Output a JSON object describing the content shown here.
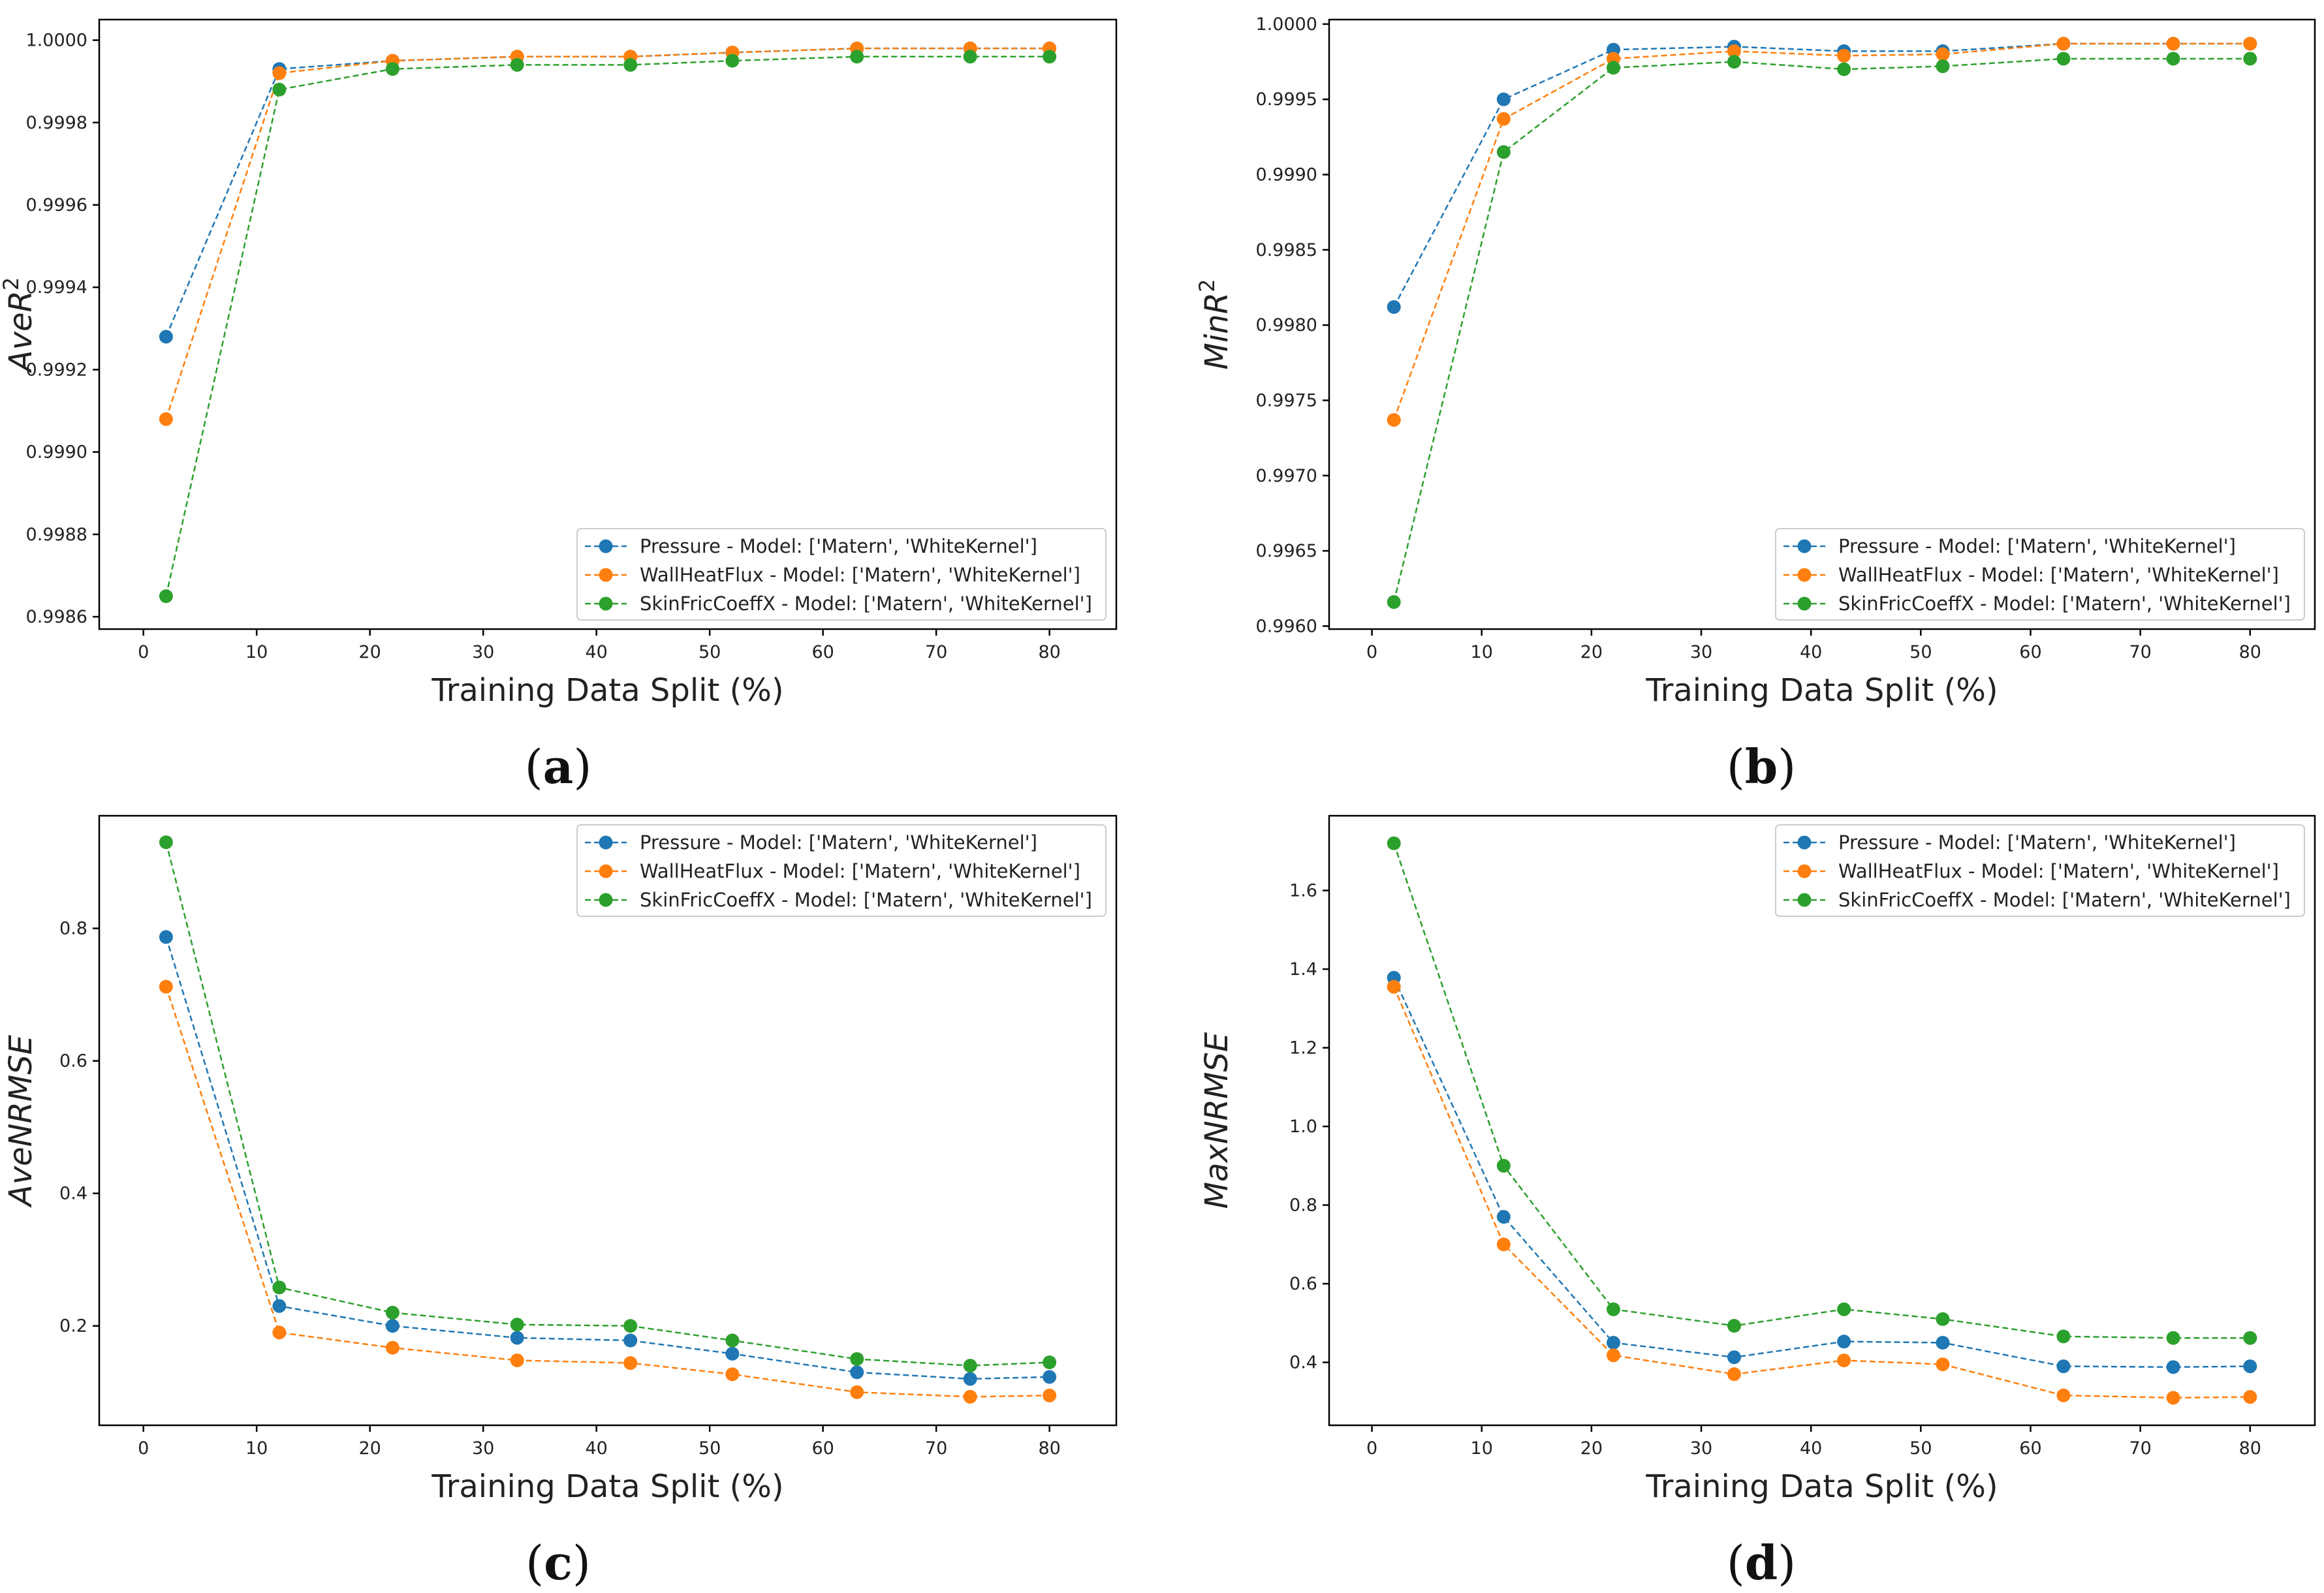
{
  "chart_data": [
    {
      "type": "line",
      "caption": "a",
      "xlabel": "Training Data Split (%)",
      "ylabel_base": "AveR",
      "ylabel_sup": "2",
      "x": [
        2,
        12,
        22,
        33,
        43,
        52,
        63,
        73,
        80
      ],
      "xlim": [
        -3.9,
        85.9
      ],
      "ylim": [
        0.99857,
        1.00005
      ],
      "xticks": [
        0,
        10,
        20,
        30,
        40,
        50,
        60,
        70,
        80
      ],
      "xtick_labels": [
        "0",
        "10",
        "20",
        "30",
        "40",
        "50",
        "60",
        "70",
        "80"
      ],
      "yticks": [
        0.9986,
        0.9988,
        0.999,
        0.9992,
        0.9994,
        0.9996,
        0.9998,
        1.0
      ],
      "ytick_labels": [
        "0.9986",
        "0.9988",
        "0.9990",
        "0.9992",
        "0.9994",
        "0.9996",
        "0.9998",
        "1.0000"
      ],
      "legend_position": "lower-right",
      "series": [
        {
          "name": "Pressure - Model: ['Matern', 'WhiteKernel']",
          "color": "#1f77b4",
          "values": [
            0.99928,
            0.99993,
            0.99995,
            0.99996,
            0.99996,
            0.99997,
            0.99998,
            0.99998,
            0.99998
          ]
        },
        {
          "name": "WallHeatFlux - Model: ['Matern', 'WhiteKernel']",
          "color": "#ff7f0e",
          "values": [
            0.99908,
            0.99992,
            0.99995,
            0.99996,
            0.99996,
            0.99997,
            0.99998,
            0.99998,
            0.99998
          ]
        },
        {
          "name": "SkinFricCoeffX - Model: ['Matern', 'WhiteKernel']",
          "color": "#2ca02c",
          "values": [
            0.99865,
            0.99988,
            0.99993,
            0.99994,
            0.99994,
            0.99995,
            0.99996,
            0.99996,
            0.99996
          ]
        }
      ]
    },
    {
      "type": "line",
      "caption": "b",
      "xlabel": "Training Data Split (%)",
      "ylabel_base": "MinR",
      "ylabel_sup": "2",
      "x": [
        2,
        12,
        22,
        33,
        43,
        52,
        63,
        73,
        80
      ],
      "xlim": [
        -3.9,
        85.9
      ],
      "ylim": [
        0.99598,
        1.00003
      ],
      "xticks": [
        0,
        10,
        20,
        30,
        40,
        50,
        60,
        70,
        80
      ],
      "xtick_labels": [
        "0",
        "10",
        "20",
        "30",
        "40",
        "50",
        "60",
        "70",
        "80"
      ],
      "yticks": [
        0.996,
        0.9965,
        0.997,
        0.9975,
        0.998,
        0.9985,
        0.999,
        0.9995,
        1.0
      ],
      "ytick_labels": [
        "0.9960",
        "0.9965",
        "0.9970",
        "0.9975",
        "0.9980",
        "0.9985",
        "0.9990",
        "0.9995",
        "1.0000"
      ],
      "legend_position": "lower-right",
      "series": [
        {
          "name": "Pressure - Model: ['Matern', 'WhiteKernel']",
          "color": "#1f77b4",
          "values": [
            0.99812,
            0.9995,
            0.99983,
            0.99985,
            0.99982,
            0.99982,
            0.99987,
            0.99987,
            0.99987
          ]
        },
        {
          "name": "WallHeatFlux - Model: ['Matern', 'WhiteKernel']",
          "color": "#ff7f0e",
          "values": [
            0.99737,
            0.99937,
            0.99977,
            0.99982,
            0.99979,
            0.9998,
            0.99987,
            0.99987,
            0.99987
          ]
        },
        {
          "name": "SkinFricCoeffX - Model: ['Matern', 'WhiteKernel']",
          "color": "#2ca02c",
          "values": [
            0.99616,
            0.99915,
            0.99971,
            0.99975,
            0.9997,
            0.99972,
            0.99977,
            0.99977,
            0.99977
          ]
        }
      ]
    },
    {
      "type": "line",
      "caption": "c",
      "xlabel": "Training Data Split (%)",
      "ylabel_base": "AveNRMSE",
      "ylabel_sup": "",
      "x": [
        2,
        12,
        22,
        33,
        43,
        52,
        63,
        73,
        80
      ],
      "xlim": [
        -3.9,
        85.9
      ],
      "ylim": [
        0.05,
        0.97
      ],
      "xticks": [
        0,
        10,
        20,
        30,
        40,
        50,
        60,
        70,
        80
      ],
      "xtick_labels": [
        "0",
        "10",
        "20",
        "30",
        "40",
        "50",
        "60",
        "70",
        "80"
      ],
      "yticks": [
        0.2,
        0.4,
        0.6,
        0.8
      ],
      "ytick_labels": [
        "0.2",
        "0.4",
        "0.6",
        "0.8"
      ],
      "legend_position": "upper-right",
      "series": [
        {
          "name": "Pressure - Model: ['Matern', 'WhiteKernel']",
          "color": "#1f77b4",
          "values": [
            0.787,
            0.23,
            0.2,
            0.182,
            0.178,
            0.158,
            0.13,
            0.12,
            0.123
          ]
        },
        {
          "name": "WallHeatFlux - Model: ['Matern', 'WhiteKernel']",
          "color": "#ff7f0e",
          "values": [
            0.712,
            0.19,
            0.167,
            0.148,
            0.144,
            0.127,
            0.1,
            0.093,
            0.095
          ]
        },
        {
          "name": "SkinFricCoeffX - Model: ['Matern', 'WhiteKernel']",
          "color": "#2ca02c",
          "values": [
            0.93,
            0.258,
            0.22,
            0.202,
            0.2,
            0.178,
            0.15,
            0.14,
            0.145
          ]
        }
      ]
    },
    {
      "type": "line",
      "caption": "d",
      "xlabel": "Training Data Split (%)",
      "ylabel_base": "MaxNRMSE",
      "ylabel_sup": "",
      "x": [
        2,
        12,
        22,
        33,
        43,
        52,
        63,
        73,
        80
      ],
      "xlim": [
        -3.9,
        85.9
      ],
      "ylim": [
        0.24,
        1.79
      ],
      "xticks": [
        0,
        10,
        20,
        30,
        40,
        50,
        60,
        70,
        80
      ],
      "xtick_labels": [
        "0",
        "10",
        "20",
        "30",
        "40",
        "50",
        "60",
        "70",
        "80"
      ],
      "yticks": [
        0.4,
        0.6,
        0.8,
        1.0,
        1.2,
        1.4,
        1.6
      ],
      "ytick_labels": [
        "0.4",
        "0.6",
        "0.8",
        "1.0",
        "1.2",
        "1.4",
        "1.6"
      ],
      "legend_position": "upper-right",
      "series": [
        {
          "name": "Pressure - Model: ['Matern', 'WhiteKernel']",
          "color": "#1f77b4",
          "values": [
            1.378,
            0.77,
            0.45,
            0.413,
            0.453,
            0.45,
            0.39,
            0.388,
            0.39
          ]
        },
        {
          "name": "WallHeatFlux - Model: ['Matern', 'WhiteKernel']",
          "color": "#ff7f0e",
          "values": [
            1.355,
            0.7,
            0.418,
            0.37,
            0.405,
            0.395,
            0.316,
            0.31,
            0.312
          ]
        },
        {
          "name": "SkinFricCoeffX - Model: ['Matern', 'WhiteKernel']",
          "color": "#2ca02c",
          "values": [
            1.72,
            0.9,
            0.535,
            0.493,
            0.535,
            0.51,
            0.466,
            0.462,
            0.462
          ]
        }
      ]
    }
  ]
}
